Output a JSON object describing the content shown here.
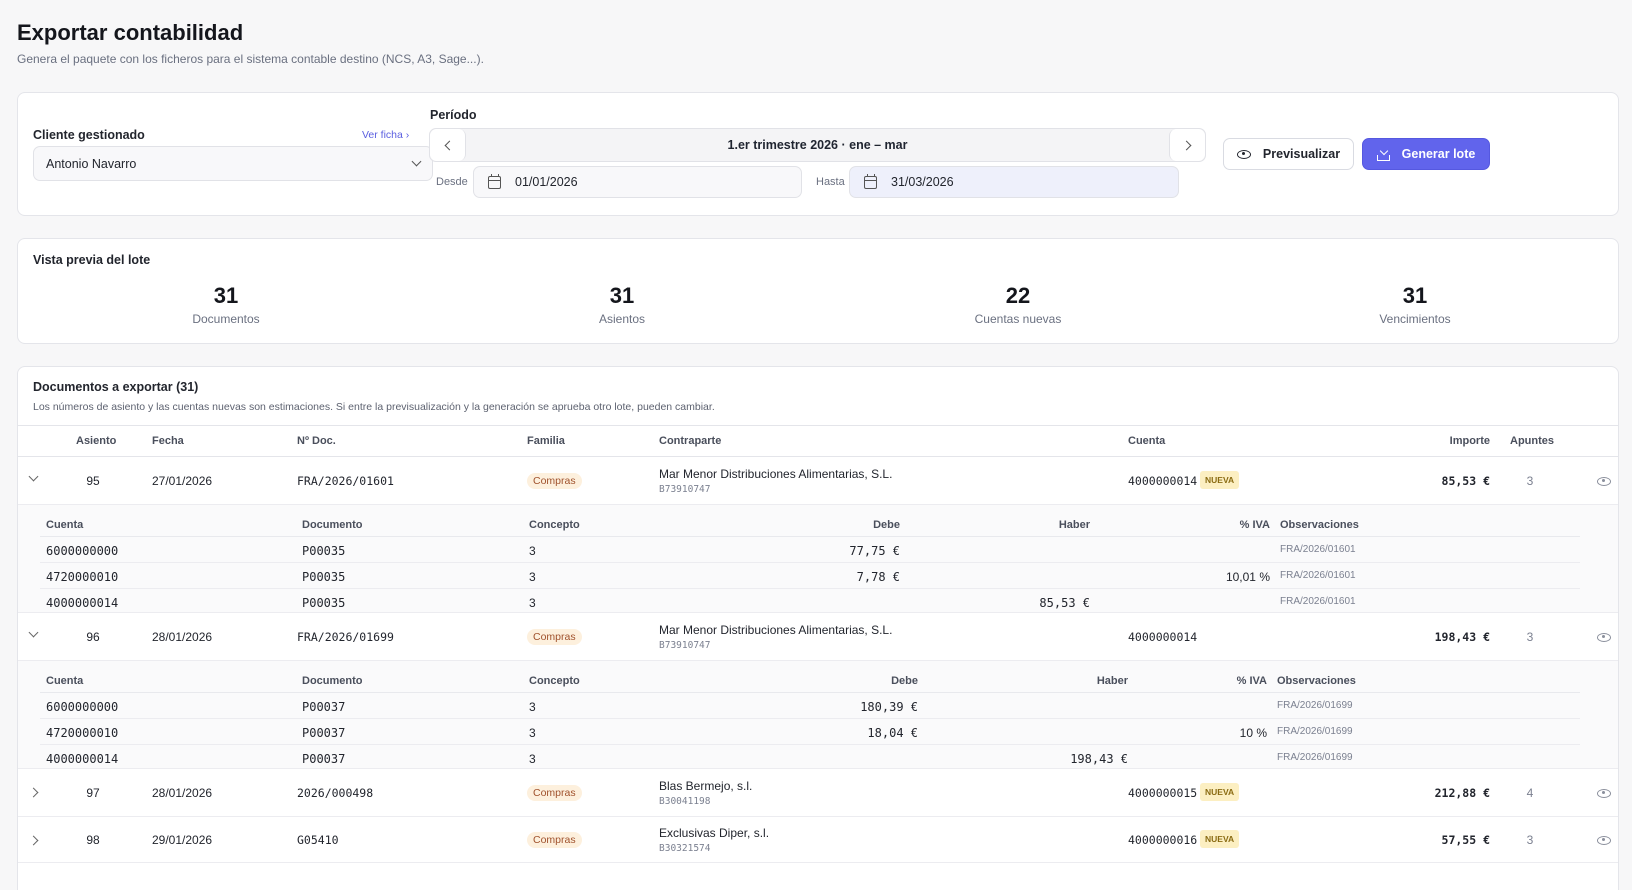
{
  "page": {
    "title": "Exportar contabilidad",
    "subtitle": "Genera el paquete con los ficheros para el sistema contable destino (NCS, A3, Sage...)."
  },
  "filters": {
    "client_label": "Cliente gestionado",
    "ver_ficha": "Ver ficha",
    "client_value": "Antonio Navarro",
    "period_label": "Período",
    "period_value": "1.er trimestre 2026 · ene – mar",
    "desde_label": "Desde",
    "desde_value": "01/01/2026",
    "hasta_label": "Hasta",
    "hasta_value": "31/03/2026",
    "preview_button": "Previsualizar",
    "generate_button": "Generar lote"
  },
  "preview": {
    "title": "Vista previa del lote",
    "stats": [
      {
        "value": "31",
        "label": "Documentos"
      },
      {
        "value": "31",
        "label": "Asientos"
      },
      {
        "value": "22",
        "label": "Cuentas nuevas"
      },
      {
        "value": "31",
        "label": "Vencimientos"
      }
    ]
  },
  "documents": {
    "title": "Documentos a exportar (31)",
    "note": "Los números de asiento y las cuentas nuevas son estimaciones. Si entre la previsualización y la generación se aprueba otro lote, pueden cambiar.",
    "headers": [
      "Asiento",
      "Fecha",
      "Nº Doc.",
      "Familia",
      "Contraparte",
      "Cuenta",
      "Importe",
      "Apuntes"
    ],
    "detail_headers": [
      "Cuenta",
      "Documento",
      "Concepto",
      "Debe",
      "Haber",
      "% IVA",
      "Observaciones"
    ],
    "nueva_label": "NUEVA",
    "rows": [
      {
        "asiento": "95",
        "fecha": "27/01/2026",
        "doc": "FRA/2026/01601",
        "familia": "Compras",
        "contraparte": "Mar Menor Distribuciones Alimentarias, S.L.",
        "nif": "B73910747",
        "cuenta": "4000000014",
        "importe": "85,53 €",
        "apuntes": "3",
        "lines": [
          {
            "cuenta": "6000000000",
            "documento": "P00035",
            "concepto": "3",
            "debe": "77,75 €",
            "haber": "",
            "iva": "",
            "obs": "FRA/2026/01601"
          },
          {
            "cuenta": "4720000010",
            "documento": "P00035",
            "concepto": "3",
            "debe": "7,78 €",
            "haber": "",
            "iva": "10,01 %",
            "obs": "FRA/2026/01601"
          },
          {
            "cuenta": "4000000014",
            "documento": "P00035",
            "concepto": "3",
            "debe": "",
            "haber": "85,53 €",
            "iva": "",
            "obs": "FRA/2026/01601"
          }
        ]
      },
      {
        "asiento": "96",
        "fecha": "28/01/2026",
        "doc": "FRA/2026/01699",
        "familia": "Compras",
        "contraparte": "Mar Menor Distribuciones Alimentarias, S.L.",
        "nif": "B73910747",
        "cuenta": "4000000014",
        "importe": "198,43 €",
        "apuntes": "3",
        "lines": [
          {
            "cuenta": "6000000000",
            "documento": "P00037",
            "concepto": "3",
            "debe": "180,39 €",
            "haber": "",
            "iva": "",
            "obs": "FRA/2026/01699"
          },
          {
            "cuenta": "4720000010",
            "documento": "P00037",
            "concepto": "3",
            "debe": "18,04 €",
            "haber": "",
            "iva": "10 %",
            "obs": "FRA/2026/01699"
          },
          {
            "cuenta": "4000000014",
            "documento": "P00037",
            "concepto": "3",
            "debe": "",
            "haber": "198,43 €",
            "iva": "",
            "obs": "FRA/2026/01699"
          }
        ]
      },
      {
        "asiento": "97",
        "fecha": "28/01/2026",
        "doc": "2026/000498",
        "familia": "Compras",
        "contraparte": "Blas Bermejo, s.l.",
        "nif": "B30041198",
        "cuenta": "4000000015",
        "importe": "212,88 €",
        "apuntes": "4"
      },
      {
        "asiento": "98",
        "fecha": "29/01/2026",
        "doc": "G05410",
        "familia": "Compras",
        "contraparte": "Exclusivas Diper, s.l.",
        "nif": "B30321574",
        "cuenta": "4000000016",
        "importe": "57,55 €",
        "apuntes": "3"
      }
    ]
  }
}
